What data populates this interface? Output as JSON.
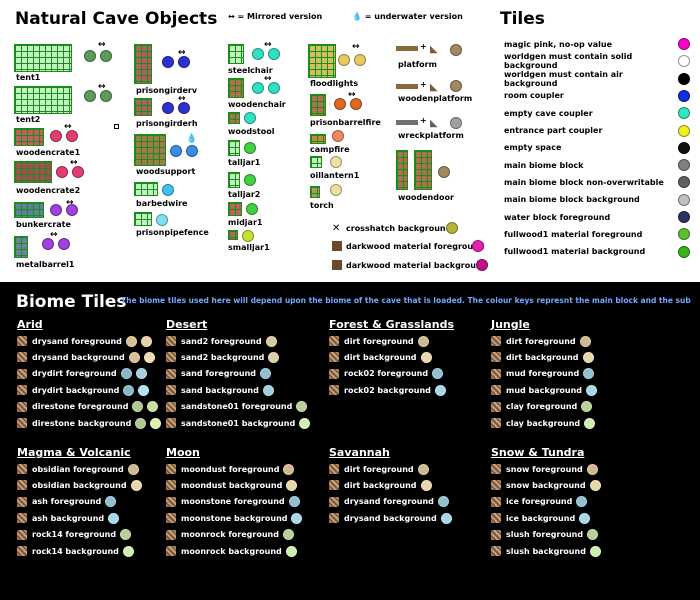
{
  "header": {
    "title": "Natural Cave Objects",
    "mirrored_legend": "= Mirrored version",
    "mirrored_symbol": "↔",
    "underwater_legend": "= underwater version",
    "underwater_symbol": "💧",
    "tiles_title": "Tiles"
  },
  "objects": {
    "col1": [
      "tent1",
      "tent2",
      "woodencrate1",
      "woodencrate2",
      "bunkercrate",
      "metalbarrel1"
    ],
    "col2": [
      "prisongirderv",
      "prisongirderh",
      "woodsupport",
      "barbedwire",
      "prisonpipefence"
    ],
    "col3": [
      "steelchair",
      "woodenchair",
      "woodstool",
      "talljar1",
      "talljar2",
      "midjar1",
      "smalljar1"
    ],
    "col4": [
      "floodlights",
      "prisonbarrelfire",
      "campfire",
      "oillantern1",
      "torch"
    ],
    "col5": [
      "platform",
      "woodenplatform",
      "wreckplatform",
      "woodendoor"
    ]
  },
  "material_keys": [
    {
      "label": "crosshatch background",
      "color": "#b5b53a"
    },
    {
      "label": "darkwood material foreground",
      "color": "#e620b0"
    },
    {
      "label": "darkwood material background",
      "color": "#c0108a"
    }
  ],
  "tiles": [
    {
      "label": "magic pink, no-op value",
      "color": "#ff00cc"
    },
    {
      "label": "worldgen must contain solid background",
      "color": "#ffffff"
    },
    {
      "label": "worldgen must contain air background",
      "color": "#000000"
    },
    {
      "label": "room coupler",
      "color": "#1030e0"
    },
    {
      "label": "empty cave coupler",
      "color": "#30e8c0"
    },
    {
      "label": "entrance part coupler",
      "color": "#f0f020"
    },
    {
      "label": "empty space",
      "color": "#111111"
    },
    {
      "label": "main biome block",
      "color": "#808080"
    },
    {
      "label": "main biome block non-overwritable",
      "color": "#606060"
    },
    {
      "label": "main biome block background",
      "color": "#c0c0c0"
    },
    {
      "label": "water block foreground",
      "color": "#2a3560"
    },
    {
      "label": "fullwood1 material foreground",
      "color": "#5cc030"
    },
    {
      "label": "fullwood1 material background",
      "color": "#40b020"
    }
  ],
  "biome": {
    "title": "Biome Tiles",
    "note": "The biome tiles used here will depend upon the biome of the cave that is loaded. The colour keys represnt the main block and the sub-blocks.",
    "groups": [
      {
        "name": "Arid",
        "rows": [
          {
            "label": "drysand foreground",
            "colors": [
              "#d8c090",
              "#e6d0a8"
            ]
          },
          {
            "label": "drysand background",
            "colors": [
              "#d8c090",
              "#f0dcb0"
            ]
          },
          {
            "label": "drydirt foreground",
            "colors": [
              "#88b8c8",
              "#a0d0e0"
            ]
          },
          {
            "label": "drydirt background",
            "colors": [
              "#88b8c8",
              "#b0e0f0"
            ]
          },
          {
            "label": "direstone foreground",
            "colors": [
              "#b0c890",
              "#c8e0a0"
            ]
          },
          {
            "label": "direstone background",
            "colors": [
              "#b0c890",
              "#e0f0b0"
            ]
          }
        ]
      },
      {
        "name": "Desert",
        "rows": [
          {
            "label": "sand2 foreground",
            "colors": [
              "#d8c8a0"
            ]
          },
          {
            "label": "sand2 background",
            "colors": [
              "#e0d0a8"
            ]
          },
          {
            "label": "sand foreground",
            "colors": [
              "#90c0d0"
            ]
          },
          {
            "label": "sand background",
            "colors": [
              "#a0d0e0"
            ]
          },
          {
            "label": "sandstone01 foreground",
            "colors": [
              "#b8d098"
            ]
          },
          {
            "label": "sandstone01 background",
            "colors": [
              "#d0f0b0"
            ]
          }
        ]
      },
      {
        "name": "Forest & Grasslands",
        "rows": [
          {
            "label": "dirt foreground",
            "colors": [
              "#d0b890"
            ]
          },
          {
            "label": "dirt background",
            "colors": [
              "#e8d8a8"
            ]
          },
          {
            "label": "rock02 foreground",
            "colors": [
              "#90c0d0"
            ]
          },
          {
            "label": "rock02 background",
            "colors": [
              "#a8d8e8"
            ]
          }
        ]
      },
      {
        "name": "Jungle",
        "rows": [
          {
            "label": "dirt foreground",
            "colors": [
              "#d0b890"
            ]
          },
          {
            "label": "dirt background",
            "colors": [
              "#e8d8a8"
            ]
          },
          {
            "label": "mud foreground",
            "colors": [
              "#90c0d0"
            ]
          },
          {
            "label": "mud background",
            "colors": [
              "#a8d8e8"
            ]
          },
          {
            "label": "clay foreground",
            "colors": [
              "#b8d098"
            ]
          },
          {
            "label": "clay background",
            "colors": [
              "#d0f0b0"
            ]
          }
        ]
      },
      {
        "name": "Magma & Volcanic",
        "rows": [
          {
            "label": "obsidian foreground",
            "colors": [
              "#d0b890"
            ]
          },
          {
            "label": "obsidian background",
            "colors": [
              "#e8d8a8"
            ]
          },
          {
            "label": "ash foreground",
            "colors": [
              "#90c0d0"
            ]
          },
          {
            "label": "ash background",
            "colors": [
              "#a8d8e8"
            ]
          },
          {
            "label": "rock14 foreground",
            "colors": [
              "#b8d098"
            ]
          },
          {
            "label": "rock14 background",
            "colors": [
              "#d0f0b0"
            ]
          }
        ]
      },
      {
        "name": "Moon",
        "rows": [
          {
            "label": "moondust foreground",
            "colors": [
              "#d0b890"
            ]
          },
          {
            "label": "moondust background",
            "colors": [
              "#e8d8a8"
            ]
          },
          {
            "label": "moonstone foreground",
            "colors": [
              "#90c0d0"
            ]
          },
          {
            "label": "moonstone background",
            "colors": [
              "#a8d8e8"
            ]
          },
          {
            "label": "moonrock foreground",
            "colors": [
              "#b8d098"
            ]
          },
          {
            "label": "moonrock background",
            "colors": [
              "#d0f0b0"
            ]
          }
        ]
      },
      {
        "name": "Savannah",
        "rows": [
          {
            "label": "dirt foreground",
            "colors": [
              "#d0b890"
            ]
          },
          {
            "label": "dirt background",
            "colors": [
              "#e8d8a8"
            ]
          },
          {
            "label": "drysand foreground",
            "colors": [
              "#90c0d0"
            ]
          },
          {
            "label": "drysand background",
            "colors": [
              "#a8d8e8"
            ]
          }
        ]
      },
      {
        "name": "Snow & Tundra",
        "rows": [
          {
            "label": "snow foreground",
            "colors": [
              "#d0b890"
            ]
          },
          {
            "label": "snow background",
            "colors": [
              "#e8d8a8"
            ]
          },
          {
            "label": "ice foreground",
            "colors": [
              "#90c0d0"
            ]
          },
          {
            "label": "ice background",
            "colors": [
              "#a8d8e8"
            ]
          },
          {
            "label": "slush foreground",
            "colors": [
              "#b8d098"
            ]
          },
          {
            "label": "slush background",
            "colors": [
              "#d0f0b0"
            ]
          }
        ]
      }
    ]
  }
}
